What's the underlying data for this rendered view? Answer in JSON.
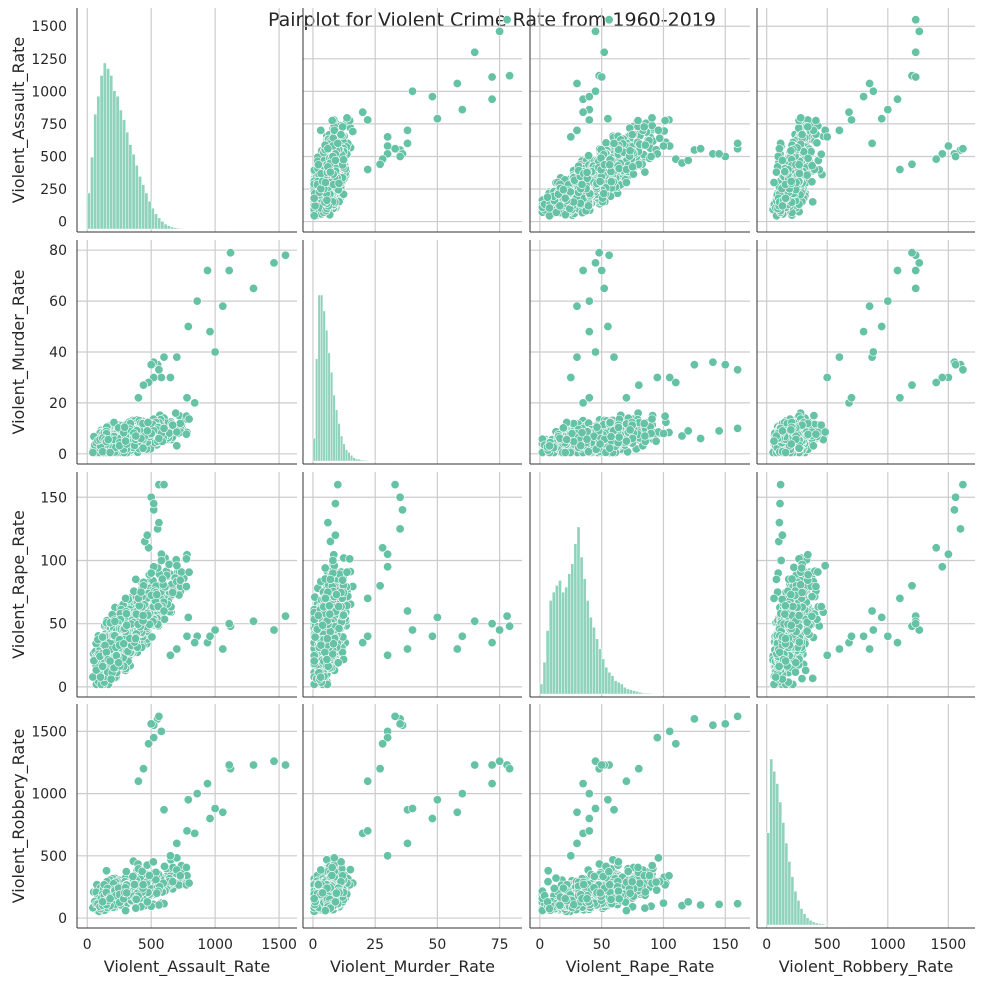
{
  "chart_data": {
    "type": "pairplot",
    "title": "Pairplot for Violent Crime Rate from 1960-2019",
    "grid": true,
    "colors": {
      "marker": "#66c2a5",
      "hist": "#8fd3bc",
      "grid": "#cccccc",
      "axis": "#333333"
    },
    "variables": [
      {
        "name": "Violent_Assault_Rate",
        "ticks": [
          0,
          250,
          500,
          750,
          1000,
          1250,
          1500
        ],
        "xticks": [
          0,
          500,
          1000,
          1500
        ],
        "range": [
          -80,
          1640
        ]
      },
      {
        "name": "Violent_Murder_Rate",
        "ticks": [
          0,
          20,
          40,
          60,
          80
        ],
        "xticks": [
          0,
          25,
          50,
          75
        ],
        "range": [
          -4,
          84
        ]
      },
      {
        "name": "Violent_Rape_Rate",
        "ticks": [
          0,
          50,
          100,
          150
        ],
        "xticks": [
          0,
          50,
          100,
          150
        ],
        "range": [
          -8,
          170
        ]
      },
      {
        "name": "Violent_Robbery_Rate",
        "ticks": [
          0,
          500,
          1000,
          1500
        ],
        "xticks": [
          0,
          500,
          1000,
          1500
        ],
        "range": [
          -80,
          1720
        ]
      }
    ],
    "diagonal_histograms": [
      {
        "variable": "Violent_Assault_Rate",
        "bin_start": 0,
        "bin_width": 25,
        "counts": [
          260,
          520,
          830,
          960,
          1110,
          1200,
          1160,
          1110,
          1000,
          960,
          860,
          790,
          700,
          610,
          540,
          460,
          380,
          320,
          260,
          200,
          150,
          110,
          80,
          55,
          35,
          24,
          15,
          10,
          6,
          4,
          2,
          1,
          0,
          0,
          0,
          0,
          0,
          0,
          0,
          0,
          0,
          0,
          0,
          1,
          0,
          0,
          0,
          0,
          0,
          0,
          0,
          0,
          0,
          0,
          0,
          0,
          0,
          0,
          0,
          0,
          0,
          1
        ]
      },
      {
        "variable": "Violent_Murder_Rate",
        "bin_start": 0,
        "bin_width": 1,
        "counts": [
          400,
          1800,
          2920,
          2920,
          2640,
          2300,
          1900,
          1560,
          1160,
          900,
          660,
          440,
          300,
          200,
          150,
          100,
          60,
          40,
          30,
          20,
          15,
          10,
          8,
          6,
          4,
          3,
          2,
          2,
          1,
          1,
          1,
          1,
          1,
          0,
          1,
          1,
          0,
          1,
          0,
          0,
          0,
          0,
          0,
          0,
          0,
          0,
          0,
          0,
          0,
          0,
          0,
          0,
          0,
          0,
          0,
          0,
          0,
          0,
          0,
          0,
          0,
          0,
          0,
          0,
          0,
          0,
          0,
          0,
          0,
          0,
          0,
          0,
          0,
          0,
          0,
          0,
          0,
          0,
          0,
          0
        ]
      },
      {
        "variable": "Violent_Rape_Rate",
        "bin_start": 0,
        "bin_width": 2.5,
        "counts": [
          60,
          190,
          380,
          560,
          610,
          650,
          680,
          610,
          640,
          720,
          780,
          900,
          1000,
          820,
          690,
          560,
          460,
          400,
          330,
          270,
          210,
          160,
          130,
          110,
          80,
          70,
          60,
          40,
          30,
          25,
          20,
          15,
          10,
          6,
          5,
          4,
          3,
          2,
          2,
          1,
          1,
          1,
          1,
          1,
          1,
          1,
          1,
          1,
          1,
          1,
          1,
          1,
          1,
          1,
          1,
          1,
          1,
          1,
          1,
          1,
          1,
          1,
          1,
          1,
          1
        ]
      },
      {
        "variable": "Violent_Robbery_Rate",
        "bin_start": 0,
        "bin_width": 25,
        "counts": [
          900,
          1620,
          1500,
          1380,
          1200,
          1000,
          800,
          620,
          470,
          330,
          240,
          160,
          110,
          70,
          45,
          30,
          20,
          14,
          10,
          8,
          6,
          4,
          3,
          2,
          2,
          1,
          1,
          1,
          1,
          1,
          1,
          1,
          0,
          0,
          1,
          0,
          0,
          0,
          0,
          0,
          0,
          0,
          0,
          0,
          0,
          0,
          0,
          0,
          0,
          0,
          0,
          0,
          0,
          0,
          0,
          0,
          0,
          0,
          0,
          0,
          0,
          0,
          0,
          1,
          0,
          1
        ]
      }
    ]
  }
}
